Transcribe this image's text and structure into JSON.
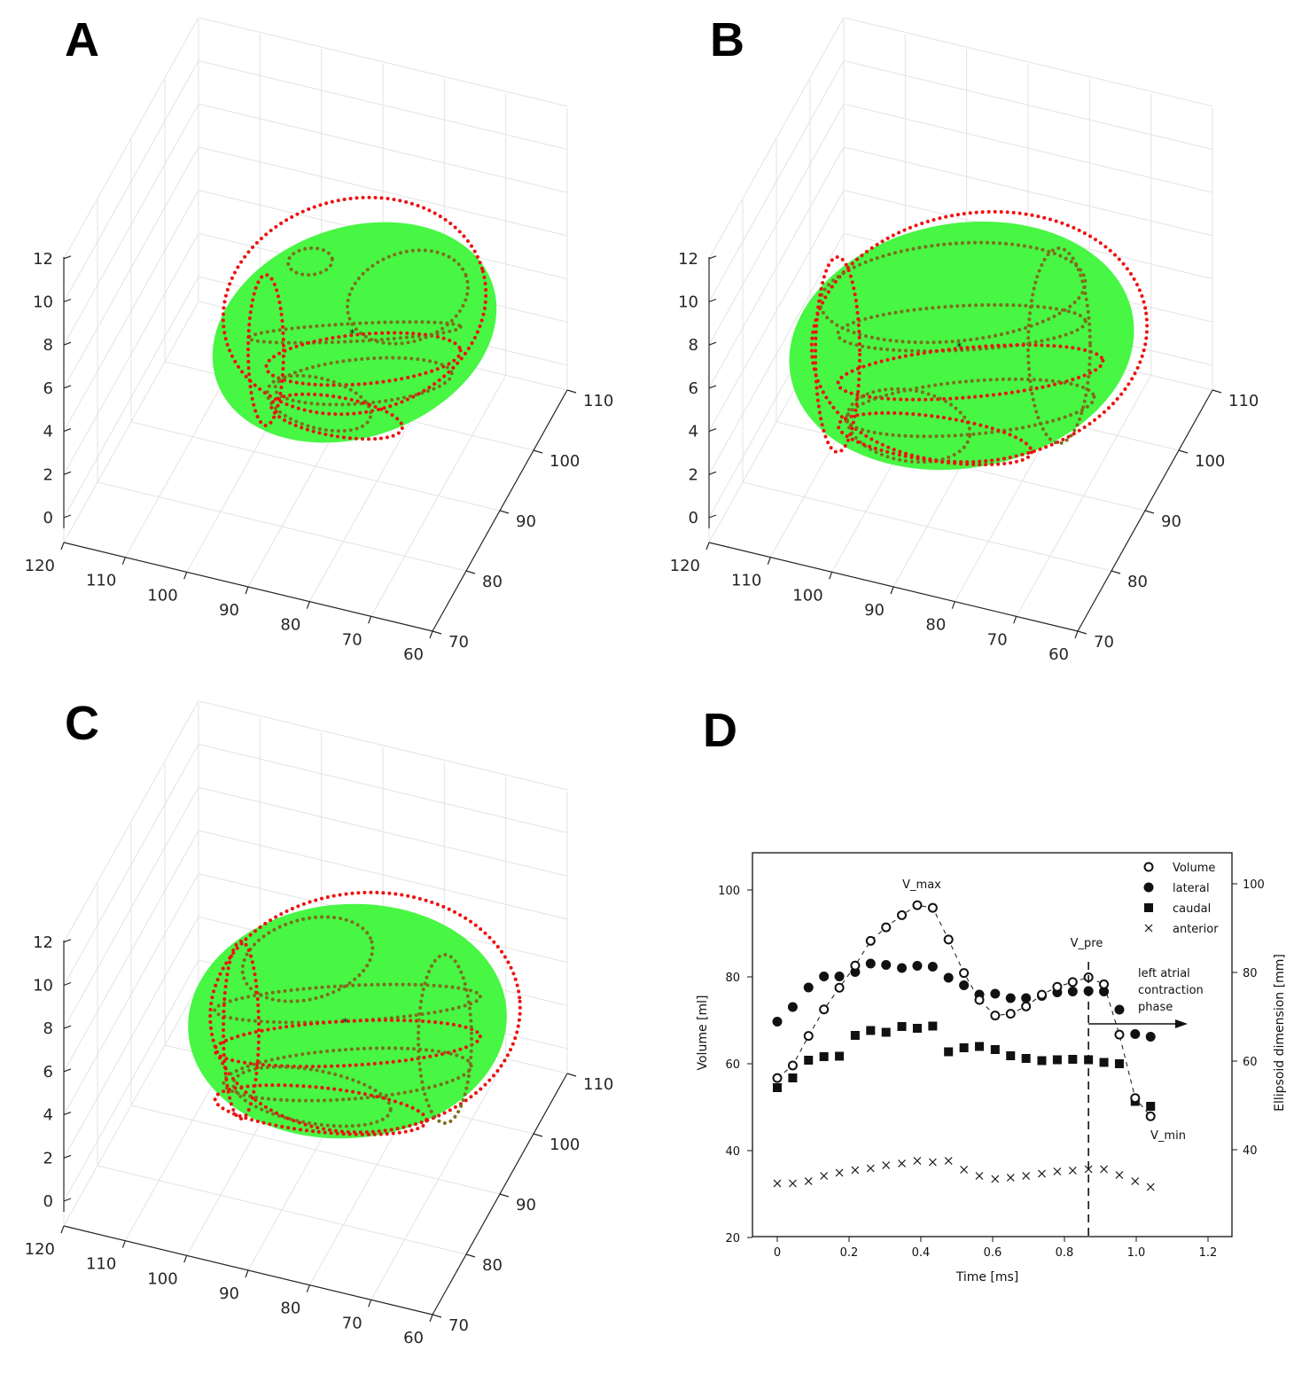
{
  "panels": [
    {
      "label": "A",
      "z_ticks": [
        "0",
        "2",
        "4",
        "6",
        "8",
        "10",
        "12"
      ],
      "x_ticks": [
        "120",
        "110",
        "100",
        "90",
        "80",
        "70",
        "60"
      ],
      "y_ticks": [
        "70",
        "80",
        "90",
        "100",
        "110"
      ]
    },
    {
      "label": "B",
      "z_ticks": [
        "0",
        "2",
        "4",
        "6",
        "8",
        "10",
        "12"
      ],
      "x_ticks": [
        "120",
        "110",
        "100",
        "90",
        "80",
        "70",
        "60"
      ],
      "y_ticks": [
        "70",
        "80",
        "90",
        "100",
        "110"
      ]
    },
    {
      "label": "C",
      "z_ticks": [
        "0",
        "2",
        "4",
        "6",
        "8",
        "10",
        "12"
      ],
      "x_ticks": [
        "120",
        "110",
        "100",
        "90",
        "80",
        "70",
        "60"
      ],
      "y_ticks": [
        "70",
        "80",
        "90",
        "100",
        "110"
      ]
    }
  ],
  "colors": {
    "ellipsoid": "#3ef53a",
    "outer_points": "#ee1111",
    "inner_points": "#7d6e1c",
    "center": "#888888"
  },
  "chart_data": {
    "type": "scatter",
    "panel_label": "D",
    "xlabel": "Time [ms]",
    "ylabel": "Volume [ml]",
    "ylabel_right": "Ellipsoid dimension [mm]",
    "xlim": [
      -0.07,
      1.27
    ],
    "ylim": [
      20,
      108
    ],
    "x_ticks": [
      "0",
      "0.2",
      "0.4",
      "0.6",
      "0.8",
      "1.0",
      "1.2"
    ],
    "x_tick_values": [
      0,
      0.2,
      0.4,
      0.6,
      0.8,
      1.0,
      1.2
    ],
    "y_ticks": [
      "20",
      "40",
      "60",
      "80",
      "100"
    ],
    "y_tick_values": [
      20,
      40,
      60,
      80,
      100
    ],
    "y_right_ticks": [
      "40",
      "60",
      "80",
      "100"
    ],
    "y_right_tick_values": [
      40,
      60,
      80,
      100
    ],
    "x": [
      0,
      0.043,
      0.087,
      0.13,
      0.173,
      0.217,
      0.26,
      0.303,
      0.347,
      0.39,
      0.433,
      0.477,
      0.52,
      0.563,
      0.607,
      0.65,
      0.693,
      0.737,
      0.78,
      0.823,
      0.867,
      0.91,
      0.953,
      0.997,
      1.04
    ],
    "series": [
      {
        "name": "Volume",
        "marker": "open-circle",
        "axis": "left",
        "values": [
          56.7,
          59.6,
          66.4,
          72.5,
          77.5,
          82.6,
          88.3,
          91.4,
          94.2,
          96.5,
          95.9,
          88.6,
          80.9,
          74.7,
          71.1,
          71.5,
          73.2,
          75.9,
          77.7,
          78.8,
          79.9,
          78.3,
          66.7,
          52.1,
          47.9
        ]
      },
      {
        "name": "lateral",
        "marker": "filled-circle",
        "axis": "right",
        "values": [
          68.9,
          72.2,
          76.6,
          79.1,
          79.1,
          80.1,
          82.0,
          81.7,
          81.0,
          81.5,
          81.3,
          78.8,
          77.1,
          75.0,
          75.2,
          74.2,
          74.2,
          74.7,
          75.5,
          75.7,
          75.8,
          75.7,
          71.6,
          66.1,
          65.5
        ]
      },
      {
        "name": "caudal",
        "marker": "filled-square",
        "axis": "right",
        "values": [
          54.0,
          56.2,
          60.2,
          61.0,
          61.1,
          65.8,
          66.9,
          66.5,
          67.8,
          67.4,
          67.9,
          62.1,
          63.0,
          63.3,
          62.6,
          61.2,
          60.6,
          60.1,
          60.3,
          60.4,
          60.3,
          59.7,
          59.4,
          50.9,
          49.8
        ]
      },
      {
        "name": "anterior",
        "marker": "x",
        "axis": "right",
        "values": [
          32.4,
          32.4,
          32.9,
          34.1,
          34.8,
          35.4,
          35.8,
          36.5,
          36.9,
          37.5,
          37.2,
          37.5,
          35.5,
          34.1,
          33.4,
          33.7,
          34.1,
          34.6,
          35.1,
          35.3,
          35.6,
          35.6,
          34.3,
          32.9,
          31.6
        ]
      }
    ],
    "annotations": {
      "v_max": "V_max",
      "v_pre": "V_pre",
      "v_min": "V_min",
      "phase_line1": "left atrial",
      "phase_line2": "contraction",
      "phase_line3": "phase"
    },
    "v_pre_time": 0.867,
    "legend_position": "top-right"
  }
}
